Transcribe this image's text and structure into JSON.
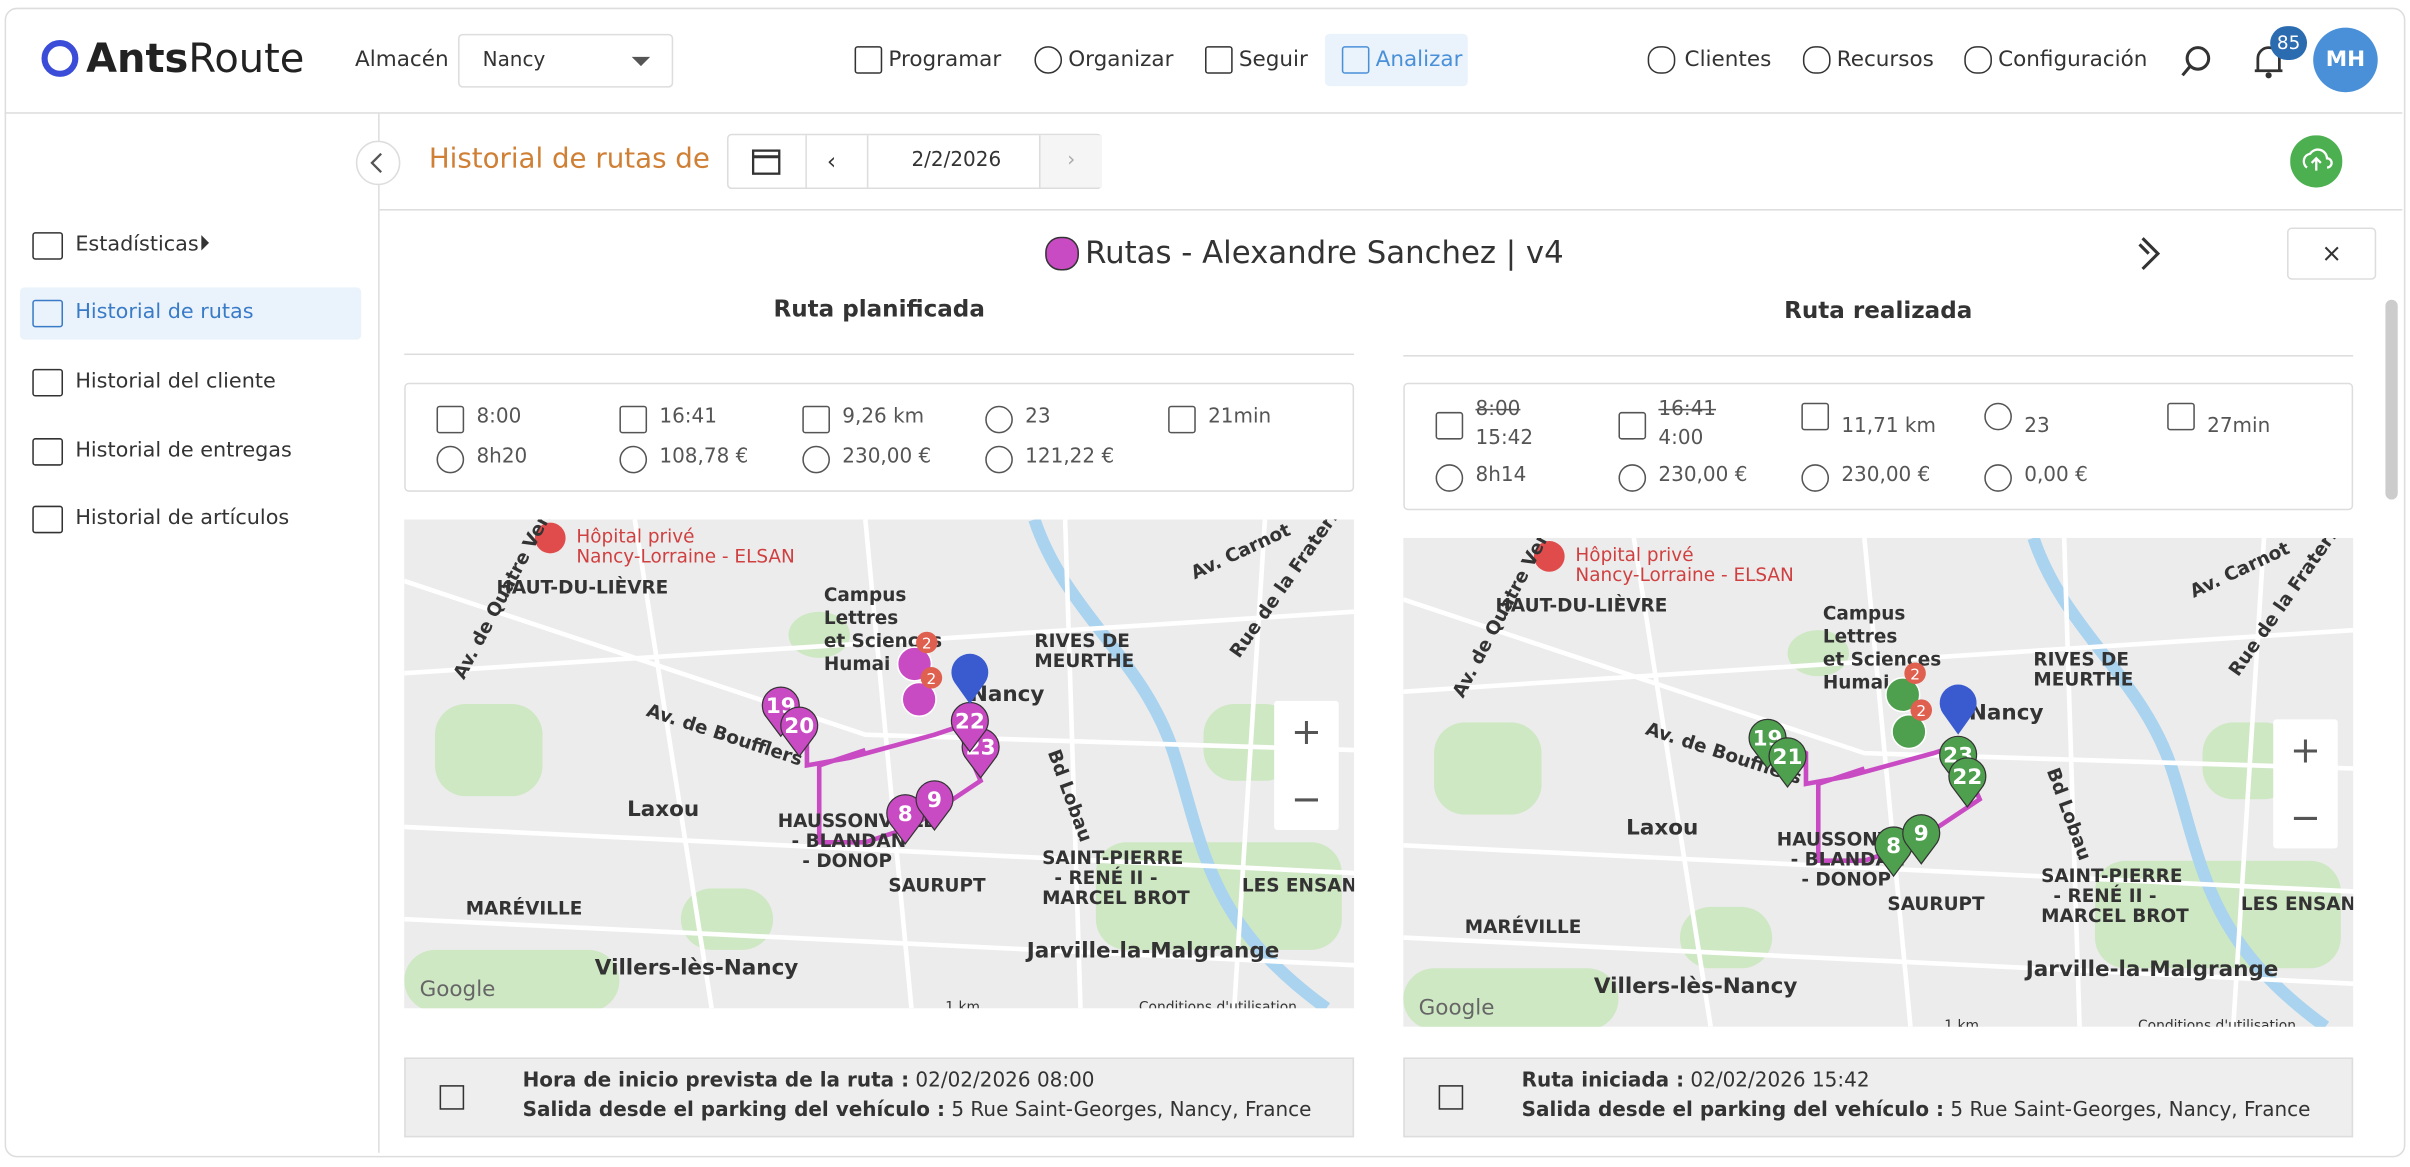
{
  "header": {
    "logo_bold": "Ants",
    "logo_light": "Route",
    "warehouse_label": "Almacén",
    "warehouse_value": "Nancy",
    "nav": [
      "Programar",
      "Organizar",
      "Seguir",
      "Analizar"
    ],
    "right_nav": [
      "Clientes",
      "Recursos",
      "Configuración"
    ],
    "notifications": "85",
    "avatar": "MH"
  },
  "sidebar": {
    "items": [
      "Estadísticas",
      "Historial de rutas",
      "Historial del cliente",
      "Historial de entregas",
      "Historial de artículos"
    ]
  },
  "toolbar": {
    "title": "Historial de rutas de",
    "date": "2/2/2026"
  },
  "panel": {
    "title": "Rutas - Alexandre Sanchez | v4",
    "close": "×"
  },
  "map": {
    "labels": [
      "Hôpital privé",
      "Nancy-Lorraine - ELSAN",
      "HAUT-DU-LIÈVRE",
      "Campus",
      "Lettres",
      "et Sciences",
      "Humai",
      "RIVES DE",
      "MEURTHE",
      "Av. Carnot",
      "Rue de la Fraternité",
      "Av. de Boufflers",
      "Nancy",
      "Laxou",
      "HAUSSONVILLE",
      "- BLANDAN",
      "- DONOP",
      "SAINT-PIERRE",
      "- RENÉ II -",
      "MARCEL BROT",
      "LES ENSANG",
      "SAURUPT",
      "MARÉVILLE",
      "Villers-lès-Nancy",
      "Jarville-la-Malgrange",
      "Bd Lobau",
      "Av. de Quatre Vents",
      "Google",
      "1 km",
      "Conditions d'utilisation"
    ],
    "zoom_in": "+",
    "zoom_out": "−"
  },
  "planned": {
    "heading": "Ruta planificada",
    "stats": [
      {
        "value": "8:00"
      },
      {
        "value": "16:41"
      },
      {
        "value": "9,26 km"
      },
      {
        "value": "23"
      },
      {
        "value": "21min"
      },
      {
        "value": "8h20"
      },
      {
        "value": "108,78 €"
      },
      {
        "value": "230,00 €"
      },
      {
        "value": "121,22 €"
      }
    ],
    "marker_color": "#c94bc4",
    "markers": [
      "19",
      "20",
      "8",
      "9",
      "23",
      "22",
      "2",
      "2"
    ],
    "info": [
      {
        "label": "Hora de inicio prevista de la ruta :",
        "value": "02/02/2026 08:00"
      },
      {
        "label": "Salida desde el parking del vehículo :",
        "value": "5 Rue Saint-Georges, Nancy, France"
      }
    ]
  },
  "actual": {
    "heading": "Ruta realizada",
    "stats": [
      {
        "struck": "8:00",
        "value": "15:42"
      },
      {
        "struck": "16:41",
        "value": "4:00"
      },
      {
        "value": "11,71 km"
      },
      {
        "value": "23"
      },
      {
        "value": "27min"
      },
      {
        "value": "8h14"
      },
      {
        "value": "230,00 €"
      },
      {
        "value": "230,00 €"
      },
      {
        "value": "0,00 €"
      }
    ],
    "marker_color": "#4e9f4e",
    "markers": [
      "19",
      "21",
      "8",
      "9",
      "23",
      "22",
      "2",
      "2"
    ],
    "info": [
      {
        "label": "Ruta iniciada :",
        "value": "02/02/2026 15:42"
      },
      {
        "label": "Salida desde el parking del vehículo :",
        "value": "5 Rue Saint-Georges, Nancy, France"
      }
    ]
  }
}
